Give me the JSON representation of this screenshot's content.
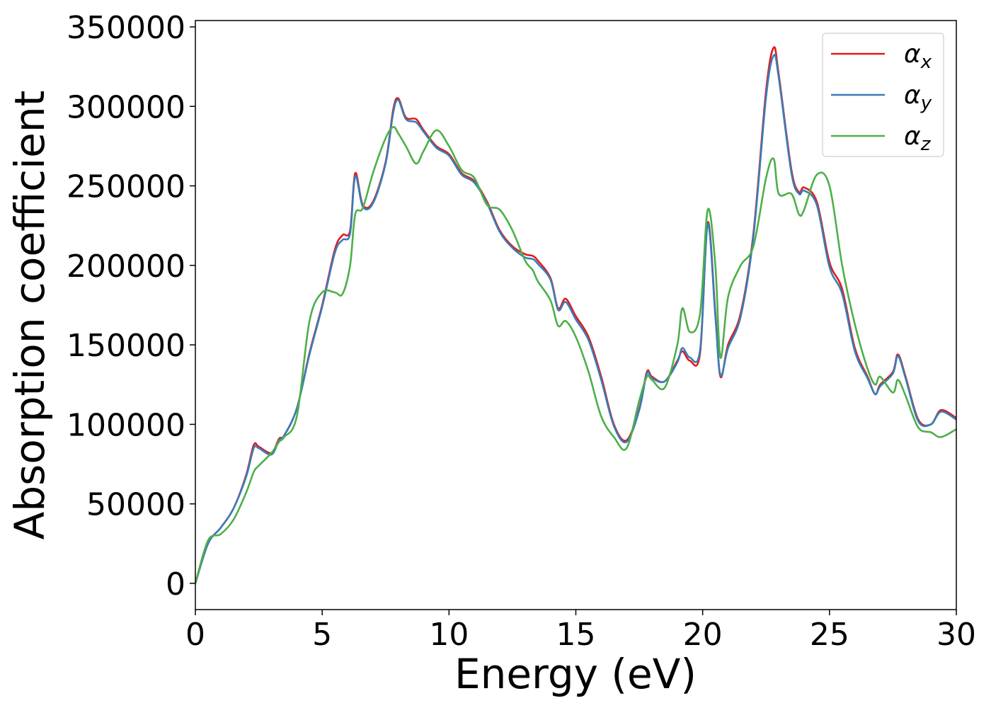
{
  "chart_data": {
    "type": "line",
    "xlabel": "Energy (eV)",
    "ylabel": "Absorption coefficient",
    "x": [
      0,
      0.5,
      1.0,
      1.5,
      2.0,
      2.3,
      2.5,
      3.0,
      3.3,
      3.5,
      4.0,
      4.5,
      5.0,
      5.5,
      5.8,
      6.1,
      6.3,
      6.6,
      7.0,
      7.5,
      7.8,
      8.0,
      8.3,
      8.7,
      9.0,
      9.5,
      10.0,
      10.5,
      11.0,
      11.5,
      12.0,
      12.5,
      13.0,
      13.3,
      13.5,
      14.0,
      14.3,
      14.6,
      15.0,
      15.5,
      16.0,
      16.5,
      17.0,
      17.5,
      17.8,
      18.0,
      18.5,
      19.0,
      19.2,
      19.5,
      19.9,
      20.2,
      20.5,
      20.7,
      21.0,
      21.5,
      22.0,
      22.5,
      22.8,
      23.0,
      23.5,
      23.8,
      24.0,
      24.5,
      25.0,
      25.5,
      26.0,
      26.5,
      26.8,
      27.0,
      27.5,
      27.7,
      28.0,
      28.5,
      29.0,
      29.4,
      30.0
    ],
    "series": [
      {
        "name": "αx",
        "color": "#e41a1c",
        "values": [
          0,
          25000,
          35000,
          47000,
          68000,
          87000,
          86000,
          82000,
          91000,
          93000,
          110000,
          145000,
          175000,
          210000,
          219000,
          222000,
          258000,
          238000,
          240000,
          265000,
          298000,
          305000,
          293000,
          292000,
          285000,
          275000,
          270000,
          258000,
          253000,
          240000,
          222000,
          212000,
          207000,
          206000,
          203000,
          192000,
          173000,
          179000,
          168000,
          155000,
          130000,
          100000,
          90000,
          110000,
          133000,
          130000,
          127000,
          140000,
          146000,
          140000,
          145000,
          227000,
          170000,
          130000,
          150000,
          170000,
          220000,
          310000,
          337000,
          320000,
          260000,
          246000,
          249000,
          240000,
          202000,
          185000,
          148000,
          130000,
          119000,
          125000,
          133000,
          144000,
          130000,
          103000,
          100000,
          109000,
          104000
        ]
      },
      {
        "name": "αy",
        "color": "#377eb8",
        "values": [
          0,
          25000,
          35000,
          47000,
          67000,
          85000,
          85000,
          81000,
          90000,
          93000,
          110000,
          144000,
          174000,
          208000,
          216000,
          220000,
          256000,
          237000,
          239000,
          264000,
          296000,
          304000,
          292000,
          290000,
          284000,
          274000,
          269000,
          257000,
          252000,
          239000,
          221000,
          211000,
          205000,
          204000,
          201000,
          191000,
          172000,
          177000,
          166000,
          153000,
          128000,
          99000,
          89000,
          109000,
          132000,
          129000,
          127000,
          139000,
          148000,
          142000,
          147000,
          226000,
          168000,
          131000,
          148000,
          168000,
          218000,
          306000,
          332000,
          318000,
          258000,
          245000,
          247000,
          238000,
          199000,
          182000,
          146000,
          129000,
          119000,
          124000,
          132000,
          143000,
          129000,
          102000,
          100000,
          108000,
          103000
        ]
      },
      {
        "name": "αz",
        "color": "#4daf4a",
        "values": [
          0,
          27000,
          31000,
          40000,
          57000,
          70000,
          74000,
          82000,
          89000,
          92000,
          105000,
          165000,
          183000,
          183000,
          182000,
          200000,
          232000,
          236000,
          258000,
          280000,
          287000,
          283000,
          275000,
          264000,
          272000,
          285000,
          275000,
          260000,
          255000,
          238000,
          235000,
          222000,
          203000,
          197000,
          190000,
          178000,
          162000,
          165000,
          155000,
          133000,
          105000,
          92000,
          85000,
          115000,
          130000,
          128000,
          123000,
          150000,
          173000,
          158000,
          170000,
          235000,
          200000,
          142000,
          180000,
          200000,
          212000,
          255000,
          267000,
          245000,
          245000,
          232000,
          235000,
          257000,
          250000,
          200000,
          163000,
          135000,
          125000,
          130000,
          120000,
          128000,
          118000,
          98000,
          95000,
          92000,
          97000
        ]
      }
    ],
    "xlim": [
      0,
      30
    ],
    "xticks": [
      0,
      5,
      10,
      15,
      20,
      25,
      30
    ],
    "ylim": [
      -16500,
      354000
    ],
    "yticks": [
      0,
      50000,
      100000,
      150000,
      200000,
      250000,
      300000,
      350000
    ],
    "grid": false,
    "legend": "upper right"
  }
}
